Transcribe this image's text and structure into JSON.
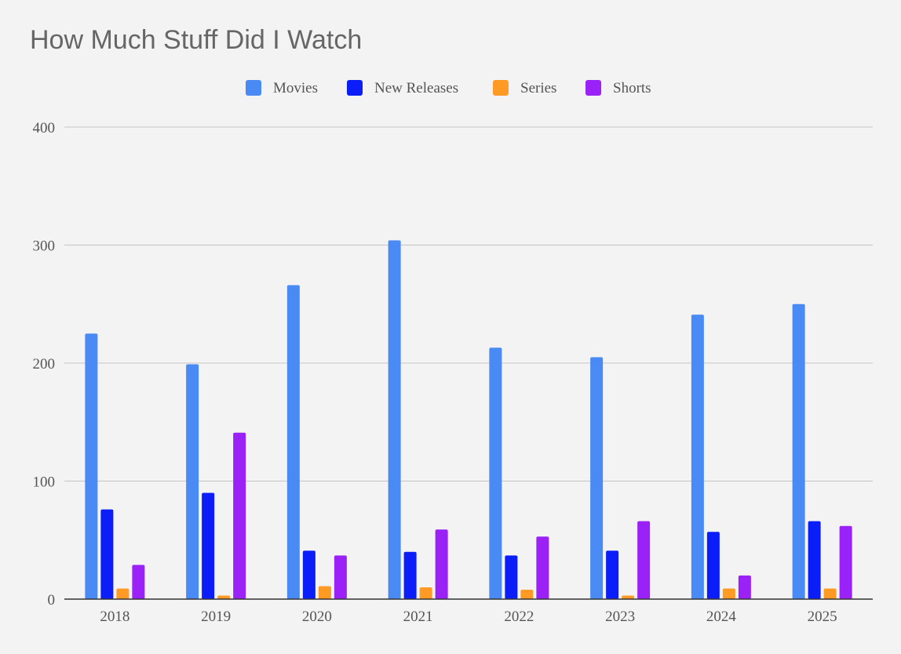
{
  "chart_data": {
    "type": "bar",
    "title": "How Much Stuff Did I Watch",
    "categories": [
      "2018",
      "2019",
      "2020",
      "2021",
      "2022",
      "2023",
      "2024",
      "2025"
    ],
    "series": [
      {
        "name": "Movies",
        "color": "#4a8af4",
        "values": [
          225,
          199,
          266,
          304,
          213,
          205,
          241,
          250
        ]
      },
      {
        "name": "New Releases",
        "color": "#0b1ef8",
        "values": [
          76,
          90,
          41,
          40,
          37,
          41,
          57,
          66
        ]
      },
      {
        "name": "Series",
        "color": "#ff9b25",
        "values": [
          9,
          3,
          11,
          10,
          8,
          3,
          9,
          9
        ]
      },
      {
        "name": "Shorts",
        "color": "#9b22f7",
        "values": [
          29,
          141,
          37,
          59,
          53,
          66,
          20,
          62
        ]
      }
    ],
    "ylim": [
      0,
      400
    ],
    "yticks": [
      0,
      100,
      200,
      300,
      400
    ],
    "grid": true,
    "legend": "top"
  }
}
